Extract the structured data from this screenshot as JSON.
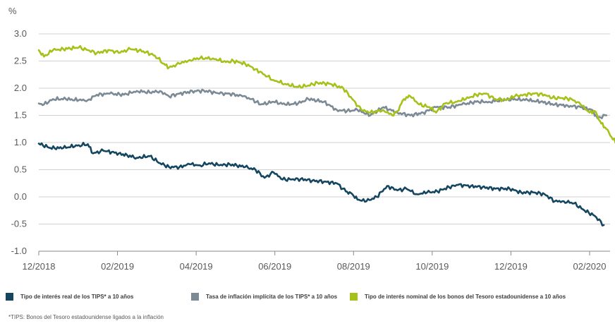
{
  "chart_data": {
    "type": "line",
    "unit_label": "%",
    "ylim": [
      -1.0,
      3.0
    ],
    "yticks": [
      "3.0",
      "2.5",
      "2.0",
      "1.5",
      "1.0",
      "0.5",
      "0.0",
      "-0.5",
      "-1.0"
    ],
    "xticks": [
      "12/2018",
      "02/2019",
      "04/2019",
      "06/2019",
      "08/2019",
      "10/2019",
      "12/2019",
      "02/2020"
    ],
    "grid": "horizontal",
    "legend_position": "bottom",
    "series": [
      {
        "name": "Tipo de interés real de los TIPS* a 10 años",
        "color": "#154660",
        "points": [
          [
            "2018-12-01",
            0.98
          ],
          [
            "2018-12-10",
            0.9
          ],
          [
            "2018-12-20",
            0.9
          ],
          [
            "2019-01-01",
            0.95
          ],
          [
            "2019-01-08",
            0.97
          ],
          [
            "2019-01-12",
            0.8
          ],
          [
            "2019-01-20",
            0.85
          ],
          [
            "2019-02-01",
            0.8
          ],
          [
            "2019-02-15",
            0.72
          ],
          [
            "2019-02-25",
            0.75
          ],
          [
            "2019-03-05",
            0.62
          ],
          [
            "2019-03-12",
            0.55
          ],
          [
            "2019-03-20",
            0.55
          ],
          [
            "2019-03-28",
            0.6
          ],
          [
            "2019-04-05",
            0.58
          ],
          [
            "2019-04-12",
            0.62
          ],
          [
            "2019-04-20",
            0.58
          ],
          [
            "2019-04-28",
            0.6
          ],
          [
            "2019-05-10",
            0.55
          ],
          [
            "2019-05-18",
            0.5
          ],
          [
            "2019-05-25",
            0.35
          ],
          [
            "2019-06-01",
            0.45
          ],
          [
            "2019-06-08",
            0.32
          ],
          [
            "2019-06-15",
            0.32
          ],
          [
            "2019-06-22",
            0.33
          ],
          [
            "2019-07-01",
            0.3
          ],
          [
            "2019-07-10",
            0.28
          ],
          [
            "2019-07-20",
            0.25
          ],
          [
            "2019-07-27",
            0.1
          ],
          [
            "2019-08-01",
            0.05
          ],
          [
            "2019-08-05",
            -0.05
          ],
          [
            "2019-08-12",
            -0.08
          ],
          [
            "2019-08-20",
            0.0
          ],
          [
            "2019-08-28",
            0.2
          ],
          [
            "2019-09-05",
            0.12
          ],
          [
            "2019-09-12",
            0.15
          ],
          [
            "2019-09-20",
            0.05
          ],
          [
            "2019-09-28",
            0.08
          ],
          [
            "2019-10-06",
            0.1
          ],
          [
            "2019-10-15",
            0.18
          ],
          [
            "2019-10-22",
            0.22
          ],
          [
            "2019-11-01",
            0.2
          ],
          [
            "2019-11-10",
            0.18
          ],
          [
            "2019-11-20",
            0.15
          ],
          [
            "2019-12-01",
            0.15
          ],
          [
            "2019-12-10",
            0.08
          ],
          [
            "2019-12-20",
            0.08
          ],
          [
            "2019-12-28",
            0.05
          ],
          [
            "2020-01-05",
            -0.08
          ],
          [
            "2020-01-12",
            -0.08
          ],
          [
            "2020-01-20",
            -0.12
          ],
          [
            "2020-01-28",
            -0.25
          ],
          [
            "2020-02-05",
            -0.35
          ],
          [
            "2020-02-12",
            -0.52
          ]
        ]
      },
      {
        "name": "Tasa de inflación implícita de los TIPS* a 10 años",
        "color": "#7b8a94",
        "points": [
          [
            "2018-12-01",
            1.72
          ],
          [
            "2018-12-05",
            1.7
          ],
          [
            "2018-12-12",
            1.8
          ],
          [
            "2018-12-22",
            1.8
          ],
          [
            "2019-01-01",
            1.78
          ],
          [
            "2019-01-08",
            1.78
          ],
          [
            "2019-01-15",
            1.88
          ],
          [
            "2019-01-25",
            1.9
          ],
          [
            "2019-02-05",
            1.88
          ],
          [
            "2019-02-15",
            1.95
          ],
          [
            "2019-02-25",
            1.92
          ],
          [
            "2019-03-05",
            1.95
          ],
          [
            "2019-03-12",
            1.85
          ],
          [
            "2019-03-20",
            1.9
          ],
          [
            "2019-04-01",
            1.95
          ],
          [
            "2019-04-10",
            1.95
          ],
          [
            "2019-04-20",
            1.9
          ],
          [
            "2019-04-28",
            1.9
          ],
          [
            "2019-05-08",
            1.85
          ],
          [
            "2019-05-15",
            1.8
          ],
          [
            "2019-05-22",
            1.7
          ],
          [
            "2019-06-01",
            1.75
          ],
          [
            "2019-06-10",
            1.7
          ],
          [
            "2019-06-20",
            1.72
          ],
          [
            "2019-06-28",
            1.8
          ],
          [
            "2019-07-10",
            1.75
          ],
          [
            "2019-07-20",
            1.6
          ],
          [
            "2019-07-28",
            1.58
          ],
          [
            "2019-08-05",
            1.6
          ],
          [
            "2019-08-15",
            1.5
          ],
          [
            "2019-08-25",
            1.65
          ],
          [
            "2019-09-05",
            1.55
          ],
          [
            "2019-09-15",
            1.5
          ],
          [
            "2019-09-25",
            1.55
          ],
          [
            "2019-10-05",
            1.65
          ],
          [
            "2019-10-15",
            1.65
          ],
          [
            "2019-10-25",
            1.7
          ],
          [
            "2019-11-05",
            1.75
          ],
          [
            "2019-11-15",
            1.75
          ],
          [
            "2019-11-25",
            1.78
          ],
          [
            "2019-12-05",
            1.8
          ],
          [
            "2019-12-15",
            1.78
          ],
          [
            "2019-12-25",
            1.75
          ],
          [
            "2020-01-05",
            1.7
          ],
          [
            "2020-01-15",
            1.68
          ],
          [
            "2020-01-25",
            1.65
          ],
          [
            "2020-02-03",
            1.6
          ],
          [
            "2020-02-07",
            1.45
          ],
          [
            "2020-02-14",
            1.5
          ]
        ]
      },
      {
        "name": "Tipo de interés nominal de los bonos del Tesoro estadounidense a 10 años",
        "color": "#a5c11a",
        "points": [
          [
            "2018-12-01",
            2.7
          ],
          [
            "2018-12-05",
            2.58
          ],
          [
            "2018-12-12",
            2.7
          ],
          [
            "2018-12-20",
            2.72
          ],
          [
            "2019-01-01",
            2.75
          ],
          [
            "2019-01-08",
            2.7
          ],
          [
            "2019-01-15",
            2.65
          ],
          [
            "2019-01-25",
            2.7
          ],
          [
            "2019-02-01",
            2.65
          ],
          [
            "2019-02-10",
            2.72
          ],
          [
            "2019-02-20",
            2.68
          ],
          [
            "2019-03-01",
            2.6
          ],
          [
            "2019-03-08",
            2.45
          ],
          [
            "2019-03-12",
            2.38
          ],
          [
            "2019-03-20",
            2.45
          ],
          [
            "2019-03-28",
            2.52
          ],
          [
            "2019-04-05",
            2.55
          ],
          [
            "2019-04-15",
            2.55
          ],
          [
            "2019-04-25",
            2.48
          ],
          [
            "2019-05-01",
            2.5
          ],
          [
            "2019-05-10",
            2.45
          ],
          [
            "2019-05-18",
            2.35
          ],
          [
            "2019-05-25",
            2.25
          ],
          [
            "2019-06-01",
            2.15
          ],
          [
            "2019-06-10",
            2.08
          ],
          [
            "2019-06-20",
            2.02
          ],
          [
            "2019-06-28",
            2.05
          ],
          [
            "2019-07-05",
            2.1
          ],
          [
            "2019-07-15",
            2.08
          ],
          [
            "2019-07-25",
            2.0
          ],
          [
            "2019-08-01",
            1.8
          ],
          [
            "2019-08-08",
            1.6
          ],
          [
            "2019-08-15",
            1.55
          ],
          [
            "2019-08-25",
            1.6
          ],
          [
            "2019-09-01",
            1.5
          ],
          [
            "2019-09-05",
            1.58
          ],
          [
            "2019-09-10",
            1.8
          ],
          [
            "2019-09-15",
            1.85
          ],
          [
            "2019-09-22",
            1.7
          ],
          [
            "2019-09-30",
            1.65
          ],
          [
            "2019-10-05",
            1.55
          ],
          [
            "2019-10-12",
            1.72
          ],
          [
            "2019-10-20",
            1.75
          ],
          [
            "2019-10-28",
            1.8
          ],
          [
            "2019-11-05",
            1.88
          ],
          [
            "2019-11-12",
            1.9
          ],
          [
            "2019-11-20",
            1.8
          ],
          [
            "2019-11-28",
            1.78
          ],
          [
            "2019-12-05",
            1.85
          ],
          [
            "2019-12-12",
            1.88
          ],
          [
            "2019-12-20",
            1.9
          ],
          [
            "2019-12-28",
            1.88
          ],
          [
            "2020-01-03",
            1.82
          ],
          [
            "2020-01-10",
            1.82
          ],
          [
            "2020-01-18",
            1.8
          ],
          [
            "2020-01-25",
            1.7
          ],
          [
            "2020-02-01",
            1.55
          ],
          [
            "2020-02-05",
            1.58
          ],
          [
            "2020-02-10",
            1.35
          ],
          [
            "2020-02-14",
            1.25
          ],
          [
            "2020-02-18",
            1.1
          ],
          [
            "2020-02-22",
            0.98
          ]
        ]
      }
    ]
  },
  "legend": [
    {
      "label": "Tipo de interés real de los TIPS* a 10 años",
      "color": "#154660"
    },
    {
      "label": "Tasa de inflación implícita de los TIPS* a 10 años",
      "color": "#7b8a94"
    },
    {
      "label": "Tipo de interés nominal de los bonos del Tesoro estadounidense a 10 años",
      "color": "#a5c11a"
    }
  ],
  "footnote": "*TIPS: Bonos del Tesoro estadounidense ligados a la inflación"
}
